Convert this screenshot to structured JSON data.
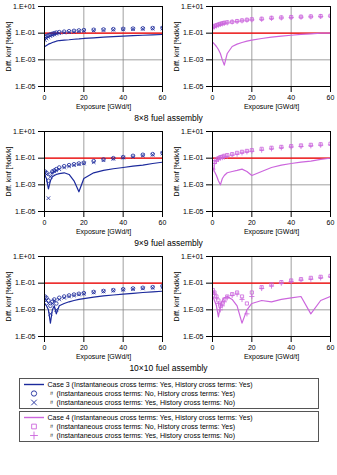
{
  "chart_data": [
    {
      "type": "line",
      "caption": "8×8 fuel assembly",
      "xlabel": "Exposure [GWd/t]",
      "ylabel": "Diff. kinf [%dk/k]",
      "log": "y",
      "grid": true,
      "legend": "bottom",
      "xlim": [
        0,
        60
      ],
      "xticks": [
        0,
        20,
        40,
        60
      ],
      "ylim": [
        1e-05,
        10
      ],
      "yticks": [
        {
          "value": 1e-05,
          "label": "1.E-05"
        },
        {
          "value": 0.001,
          "label": "1.E-03"
        },
        {
          "value": 0.1,
          "label": "1.E-01"
        },
        {
          "value": 10,
          "label": "1.E+01"
        }
      ],
      "hlines": [
        {
          "y": 0.1,
          "color": "#ff0000"
        }
      ],
      "x": [
        0.2,
        1,
        2,
        3,
        4,
        5,
        6,
        7.5,
        10,
        12.5,
        15,
        17.5,
        20,
        25,
        30,
        35,
        40,
        45,
        50,
        55,
        60
      ],
      "series": [
        {
          "name": "Case 3 (Instantaneous cross terms: Yes, History cross terms: Yes)",
          "color": "#1c2a9c",
          "marker": "none",
          "line_style": "solid",
          "values": [
            0.01,
            0.012,
            0.015,
            0.017,
            0.02,
            0.022,
            0.025,
            0.028,
            0.03,
            0.032,
            0.035,
            0.037,
            0.04,
            0.045,
            0.05,
            0.055,
            0.06,
            0.065,
            0.07,
            0.075,
            0.08
          ]
        },
        {
          "name": "〃 (Instantaneous cross terms: No, History cross terms: Yes)",
          "color": "#1c2a9c",
          "marker": "circle",
          "line_style": "none",
          "values": [
            0.05,
            0.06,
            0.07,
            0.08,
            0.09,
            0.1,
            0.11,
            0.12,
            0.13,
            0.14,
            0.15,
            0.16,
            0.17,
            0.18,
            0.19,
            0.2,
            0.21,
            0.22,
            0.23,
            0.24,
            0.25
          ]
        },
        {
          "name": "〃 (Instantaneous cross terms: Yes, History cross terms: No)",
          "color": "#1c2a9c",
          "marker": "x",
          "line_style": "none",
          "values": [
            0.03,
            0.04,
            0.05,
            0.06,
            0.07,
            0.08,
            0.09,
            0.1,
            0.11,
            0.12,
            0.13,
            0.14,
            0.15,
            0.16,
            0.17,
            0.18,
            0.19,
            0.2,
            0.21,
            0.22,
            0.22
          ]
        }
      ]
    },
    {
      "type": "line",
      "xlabel": "Exposure [GWd/t]",
      "ylabel": "Diff. kinf [%dk/k]",
      "log": "y",
      "grid": true,
      "legend": "bottom",
      "xlim": [
        0,
        60
      ],
      "xticks": [
        0,
        20,
        40,
        60
      ],
      "ylim": [
        1e-05,
        10
      ],
      "yticks": [
        {
          "value": 1e-05,
          "label": "1.E-05"
        },
        {
          "value": 0.001,
          "label": "1.E-03"
        },
        {
          "value": 0.1,
          "label": "1.E-01"
        },
        {
          "value": 10,
          "label": "1.E+01"
        }
      ],
      "hlines": [
        {
          "y": 0.1,
          "color": "#ff0000"
        }
      ],
      "x": [
        0.2,
        1,
        2,
        3,
        4,
        5,
        6,
        7.5,
        10,
        12.5,
        15,
        17.5,
        20,
        25,
        30,
        35,
        40,
        45,
        50,
        55,
        60
      ],
      "series": [
        {
          "name": "Case 4 (Instantaneous cross terms: Yes, History cross terms: Yes)",
          "color": "#cc66dd",
          "marker": "none",
          "line_style": "solid",
          "values": [
            0.02,
            0.015,
            0.01,
            0.006,
            0.003,
            0.001,
            0.0004,
            0.003,
            0.01,
            0.015,
            0.02,
            0.025,
            0.03,
            0.04,
            0.05,
            0.06,
            0.07,
            0.08,
            0.09,
            0.1,
            0.1
          ]
        },
        {
          "name": "〃 (Instantaneous cross terms: No, History cross terms: Yes)",
          "color": "#cc66dd",
          "marker": "square",
          "line_style": "none",
          "values": [
            0.3,
            0.35,
            0.4,
            0.45,
            0.5,
            0.55,
            0.6,
            0.65,
            0.7,
            0.8,
            0.9,
            1.0,
            1.1,
            1.2,
            1.4,
            1.5,
            1.6,
            1.7,
            1.8,
            1.9,
            2.0
          ]
        },
        {
          "name": "〃 (Instantaneous cross terms: Yes, History cross terms: No)",
          "color": "#cc66dd",
          "marker": "plus",
          "line_style": "none",
          "values": [
            0.25,
            0.3,
            0.35,
            0.4,
            0.45,
            0.5,
            0.55,
            0.6,
            0.7,
            0.75,
            0.85,
            0.95,
            1.0,
            1.1,
            1.3,
            1.4,
            1.5,
            1.6,
            1.7,
            1.8,
            1.9
          ]
        }
      ]
    },
    {
      "type": "line",
      "caption": "9×9 fuel assembly",
      "xlabel": "Exposure [GWd/t]",
      "ylabel": "Diff. kinf [%dk/k]",
      "log": "y",
      "grid": true,
      "xlim": [
        0,
        60
      ],
      "xticks": [
        0,
        20,
        40,
        60
      ],
      "ylim": [
        1e-05,
        10
      ],
      "yticks": [
        {
          "value": 1e-05,
          "label": "1.E-05"
        },
        {
          "value": 0.001,
          "label": "1.E-03"
        },
        {
          "value": 0.1,
          "label": "1.E-01"
        },
        {
          "value": 10,
          "label": "1.E+01"
        }
      ],
      "hlines": [
        {
          "y": 0.1,
          "color": "#ff0000"
        }
      ],
      "x": [
        0.2,
        1,
        2,
        3,
        4,
        5,
        6,
        7.5,
        10,
        12.5,
        15,
        17.5,
        20,
        25,
        30,
        35,
        40,
        45,
        50,
        55,
        60
      ],
      "series": [
        {
          "name": "Case 3 (Instantaneous cross terms: Yes, History cross terms: Yes)",
          "color": "#1c2a9c",
          "marker": "none",
          "line_style": "solid",
          "values": [
            0.005,
            0.003,
            0.0005,
            0.002,
            0.004,
            0.005,
            0.006,
            0.007,
            0.008,
            0.006,
            0.002,
            0.0003,
            0.003,
            0.008,
            0.012,
            0.016,
            0.02,
            0.025,
            0.03,
            0.04,
            0.05
          ]
        },
        {
          "name": "〃 (Instantaneous cross terms: No, History cross terms: Yes)",
          "color": "#1c2a9c",
          "marker": "circle",
          "line_style": "none",
          "values": [
            0.01,
            0.008,
            0.002,
            0.006,
            0.01,
            0.012,
            0.015,
            0.02,
            0.025,
            0.03,
            0.035,
            0.04,
            0.045,
            0.06,
            0.08,
            0.1,
            0.12,
            0.15,
            0.18,
            0.2,
            0.25
          ]
        },
        {
          "name": "〃 (Instantaneous cross terms: Yes, History cross terms: No)",
          "color": "#1c2a9c",
          "marker": "x",
          "line_style": "none",
          "values": [
            0.008,
            0.006,
            0.0001,
            0.004,
            0.008,
            0.01,
            0.012,
            0.015,
            0.02,
            0.025,
            0.03,
            0.035,
            0.04,
            0.05,
            0.07,
            0.09,
            0.11,
            0.13,
            0.16,
            0.18,
            0.22
          ]
        }
      ]
    },
    {
      "type": "line",
      "xlabel": "Exposure [GWd/t]",
      "ylabel": "Diff. kinf [%dk/k]",
      "log": "y",
      "grid": true,
      "xlim": [
        0,
        60
      ],
      "xticks": [
        0,
        20,
        40,
        60
      ],
      "ylim": [
        1e-05,
        10
      ],
      "yticks": [
        {
          "value": 1e-05,
          "label": "1.E-05"
        },
        {
          "value": 0.001,
          "label": "1.E-03"
        },
        {
          "value": 0.1,
          "label": "1.E-01"
        },
        {
          "value": 10,
          "label": "1.E+01"
        }
      ],
      "hlines": [
        {
          "y": 0.1,
          "color": "#ff0000"
        }
      ],
      "x": [
        0.2,
        1,
        2,
        3,
        4,
        5,
        6,
        7.5,
        10,
        12.5,
        15,
        17.5,
        20,
        25,
        30,
        35,
        40,
        45,
        50,
        55,
        60
      ],
      "series": [
        {
          "name": "Case 4 (Instantaneous cross terms: Yes, History cross terms: Yes)",
          "color": "#cc66dd",
          "marker": "none",
          "line_style": "solid",
          "values": [
            0.02,
            0.01,
            0.005,
            0.002,
            0.001,
            0.003,
            0.005,
            0.008,
            0.01,
            0.012,
            0.015,
            0.01,
            0.005,
            0.01,
            0.02,
            0.03,
            0.04,
            0.05,
            0.06,
            0.08,
            0.1
          ]
        },
        {
          "name": "〃 (Instantaneous cross terms: No, History cross terms: Yes)",
          "color": "#cc66dd",
          "marker": "square",
          "line_style": "none",
          "values": [
            0.02,
            0.05,
            0.08,
            0.1,
            0.12,
            0.13,
            0.15,
            0.17,
            0.2,
            0.25,
            0.3,
            0.35,
            0.4,
            0.5,
            0.6,
            0.7,
            0.8,
            0.9,
            1.0,
            1.1,
            1.2
          ]
        },
        {
          "name": "〃 (Instantaneous cross terms: Yes, History cross terms: No)",
          "color": "#cc66dd",
          "marker": "plus",
          "line_style": "none",
          "values": [
            0.015,
            0.04,
            0.06,
            0.08,
            0.1,
            0.11,
            0.12,
            0.14,
            0.17,
            0.2,
            0.25,
            0.3,
            0.33,
            0.4,
            0.5,
            0.6,
            0.7,
            0.75,
            0.85,
            0.95,
            1.0
          ]
        }
      ]
    },
    {
      "type": "line",
      "caption": "10×10 fuel assembly",
      "xlabel": "Exposure [GWd/t]",
      "ylabel": "Diff. kinf [%dk/k]",
      "log": "y",
      "grid": true,
      "xlim": [
        0,
        60
      ],
      "xticks": [
        0,
        20,
        40,
        60
      ],
      "ylim": [
        1e-05,
        10
      ],
      "yticks": [
        {
          "value": 1e-05,
          "label": "1.E-05"
        },
        {
          "value": 0.001,
          "label": "1.E-03"
        },
        {
          "value": 0.1,
          "label": "1.E-01"
        },
        {
          "value": 10,
          "label": "1.E+01"
        }
      ],
      "hlines": [
        {
          "y": 0.1,
          "color": "#ff0000"
        }
      ],
      "x": [
        0.2,
        1,
        2,
        3,
        4,
        5,
        6,
        7.5,
        10,
        12.5,
        15,
        17.5,
        20,
        25,
        30,
        35,
        40,
        45,
        50,
        55,
        60
      ],
      "series": [
        {
          "name": "Case 3 (Instantaneous cross terms: Yes, History cross terms: Yes)",
          "color": "#1c2a9c",
          "marker": "none",
          "line_style": "solid",
          "values": [
            0.003,
            0.002,
            0.001,
            0.0001,
            0.001,
            0.002,
            0.0005,
            0.002,
            0.003,
            0.004,
            0.005,
            0.006,
            0.007,
            0.009,
            0.011,
            0.013,
            0.015,
            0.017,
            0.02,
            0.022,
            0.025
          ]
        },
        {
          "name": "〃 (Instantaneous cross terms: No, History cross terms: Yes)",
          "color": "#1c2a9c",
          "marker": "circle",
          "line_style": "none",
          "values": [
            0.01,
            0.008,
            0.005,
            0.002,
            0.004,
            0.006,
            0.003,
            0.008,
            0.01,
            0.012,
            0.014,
            0.016,
            0.018,
            0.022,
            0.026,
            0.03,
            0.035,
            0.04,
            0.045,
            0.05,
            0.06
          ]
        },
        {
          "name": "〃 (Instantaneous cross terms: Yes, History cross terms: No)",
          "color": "#1c2a9c",
          "marker": "x",
          "line_style": "none",
          "values": [
            0.006,
            0.005,
            0.003,
            0.0005,
            0.003,
            0.005,
            0.001,
            0.006,
            0.008,
            0.01,
            0.012,
            0.014,
            0.016,
            0.02,
            0.024,
            0.028,
            0.032,
            0.036,
            0.04,
            0.045,
            0.05
          ]
        }
      ]
    },
    {
      "type": "line",
      "xlabel": "Exposure [GWd/t]",
      "ylabel": "Diff. kinf [%dk/k]",
      "log": "y",
      "grid": true,
      "xlim": [
        0,
        60
      ],
      "xticks": [
        0,
        20,
        40,
        60
      ],
      "ylim": [
        1e-05,
        10
      ],
      "yticks": [
        {
          "value": 1e-05,
          "label": "1.E-05"
        },
        {
          "value": 0.001,
          "label": "1.E-03"
        },
        {
          "value": 0.1,
          "label": "1.E-01"
        },
        {
          "value": 10,
          "label": "1.E+01"
        }
      ],
      "hlines": [
        {
          "y": 0.1,
          "color": "#ff0000"
        }
      ],
      "x": [
        0.2,
        1,
        2,
        3,
        4,
        5,
        6,
        7.5,
        10,
        12.5,
        15,
        17.5,
        20,
        25,
        30,
        35,
        40,
        45,
        50,
        55,
        60
      ],
      "series": [
        {
          "name": "Case 4 (Instantaneous cross terms: Yes, History cross terms: Yes)",
          "color": "#cc66dd",
          "marker": "none",
          "line_style": "solid",
          "values": [
            0.01,
            0.005,
            0.002,
            0.0003,
            0.002,
            0.005,
            0.008,
            0.01,
            0.006,
            0.002,
            0.0001,
            0.001,
            0.003,
            0.005,
            0.004,
            0.006,
            0.008,
            0.01,
            0.0005,
            0.005,
            0.01
          ]
        },
        {
          "name": "〃 (Instantaneous cross terms: No, History cross terms: Yes)",
          "color": "#cc66dd",
          "marker": "square",
          "line_style": "none",
          "values": [
            0.03,
            0.02,
            0.01,
            0.005,
            0.002,
            0.003,
            0.006,
            0.01,
            0.015,
            0.02,
            0.01,
            0.003,
            0.02,
            0.05,
            0.08,
            0.12,
            0.16,
            0.2,
            0.25,
            0.3,
            0.35
          ]
        },
        {
          "name": "〃 (Instantaneous cross terms: Yes, History cross terms: No)",
          "color": "#cc66dd",
          "marker": "plus",
          "line_style": "none",
          "values": [
            0.02,
            0.015,
            0.008,
            0.003,
            0.001,
            0.002,
            0.004,
            0.008,
            0.012,
            0.015,
            0.006,
            0.0005,
            0.01,
            0.04,
            0.06,
            0.1,
            0.13,
            0.17,
            0.2,
            0.25,
            0.3
          ]
        }
      ]
    }
  ]
}
